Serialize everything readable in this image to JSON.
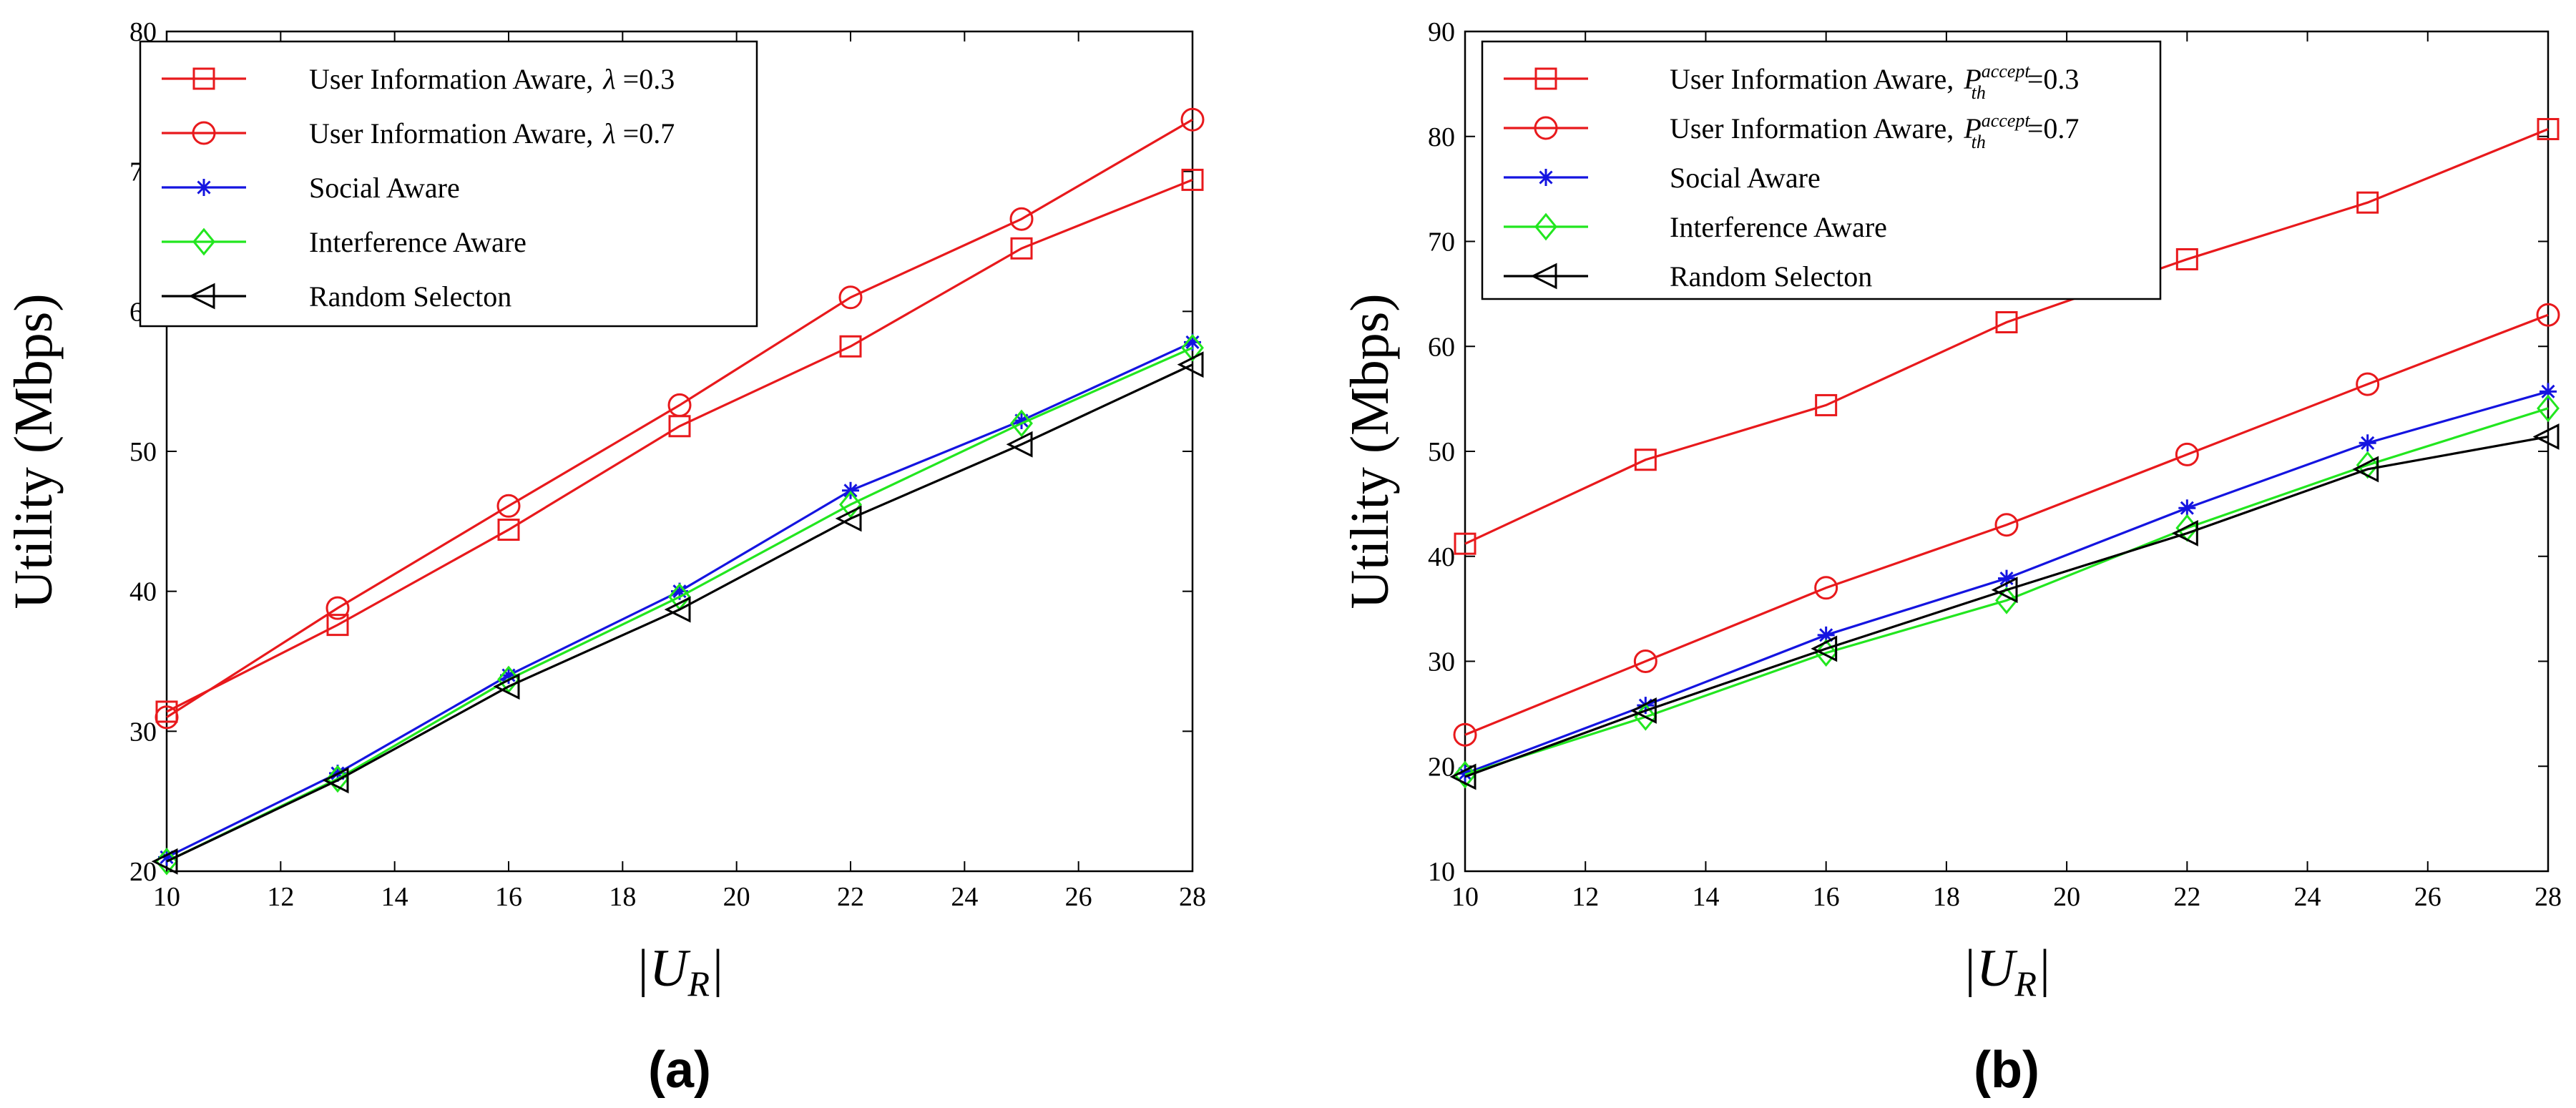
{
  "chart_data": [
    {
      "type": "line",
      "panel_label": "(a)",
      "title": "",
      "xlabel": "|U",
      "xlabel_sub": "R",
      "xlabel_end": "|",
      "ylabel": "Utility (Mbps)",
      "xlim": [
        10,
        28
      ],
      "ylim": [
        20,
        80
      ],
      "x_ticks": [
        10,
        12,
        14,
        16,
        18,
        20,
        22,
        24,
        26,
        28
      ],
      "y_ticks": [
        20,
        30,
        40,
        50,
        60,
        70,
        80
      ],
      "x": [
        10,
        13,
        16,
        19,
        22,
        25,
        28
      ],
      "legend_position": "top-left",
      "series": [
        {
          "name": "User Information Aware,",
          "param": "λ",
          "param_value": " =0.3",
          "color": "#e8191c",
          "marker": "square",
          "values": [
            31.4,
            37.6,
            44.4,
            51.8,
            57.5,
            64.5,
            69.4
          ]
        },
        {
          "name": "User Information Aware,",
          "param": "λ",
          "param_value": " =0.7",
          "color": "#e8191c",
          "marker": "circle",
          "values": [
            31.0,
            38.8,
            46.1,
            53.3,
            61.0,
            66.6,
            73.7
          ]
        },
        {
          "name": "Social Aware",
          "color": "#1414e0",
          "marker": "star",
          "values": [
            21.0,
            27.0,
            34.0,
            40.0,
            47.2,
            52.2,
            57.8
          ]
        },
        {
          "name": "Interference Aware",
          "color": "#22e61f",
          "marker": "diamond",
          "values": [
            20.7,
            26.6,
            33.7,
            39.6,
            46.2,
            52.0,
            57.4
          ]
        },
        {
          "name": "Random Selecton",
          "color": "#000000",
          "marker": "triangle-left",
          "values": [
            20.7,
            26.5,
            33.2,
            38.7,
            45.2,
            50.5,
            56.2
          ]
        }
      ]
    },
    {
      "type": "line",
      "panel_label": "(b)",
      "title": "",
      "xlabel": "|U",
      "xlabel_sub": "R",
      "xlabel_end": "|",
      "ylabel": "Utility (Mbps)",
      "xlim": [
        10,
        28
      ],
      "ylim": [
        10,
        90
      ],
      "x_ticks": [
        10,
        12,
        14,
        16,
        18,
        20,
        22,
        24,
        26,
        28
      ],
      "y_ticks": [
        10,
        20,
        30,
        40,
        50,
        60,
        70,
        80,
        90
      ],
      "x": [
        10,
        13,
        16,
        19,
        22,
        25,
        28
      ],
      "legend_position": "top-left",
      "series": [
        {
          "name": "User Information Aware,",
          "param": "P",
          "param_sub": "th",
          "param_sup": "accept",
          "param_value": "=0.3",
          "color": "#e8191c",
          "marker": "square",
          "values": [
            41.2,
            49.2,
            54.4,
            62.3,
            68.3,
            73.7,
            80.7
          ]
        },
        {
          "name": "User Information Aware,",
          "param": "P",
          "param_sub": "th",
          "param_sup": "accept",
          "param_value": "=0.7",
          "color": "#e8191c",
          "marker": "circle",
          "values": [
            23.0,
            30.0,
            37.0,
            43.0,
            49.7,
            56.4,
            63.0
          ]
        },
        {
          "name": "Social Aware",
          "color": "#1414e0",
          "marker": "star",
          "values": [
            19.3,
            25.8,
            32.5,
            37.9,
            44.6,
            50.8,
            55.7
          ]
        },
        {
          "name": "Interference Aware",
          "color": "#22e61f",
          "marker": "diamond",
          "values": [
            19.2,
            24.7,
            30.8,
            35.8,
            42.7,
            48.7,
            54.1
          ]
        },
        {
          "name": "Random Selecton",
          "color": "#000000",
          "marker": "triangle-left",
          "values": [
            19.0,
            25.3,
            31.2,
            36.8,
            42.2,
            48.3,
            51.4
          ]
        }
      ]
    }
  ]
}
